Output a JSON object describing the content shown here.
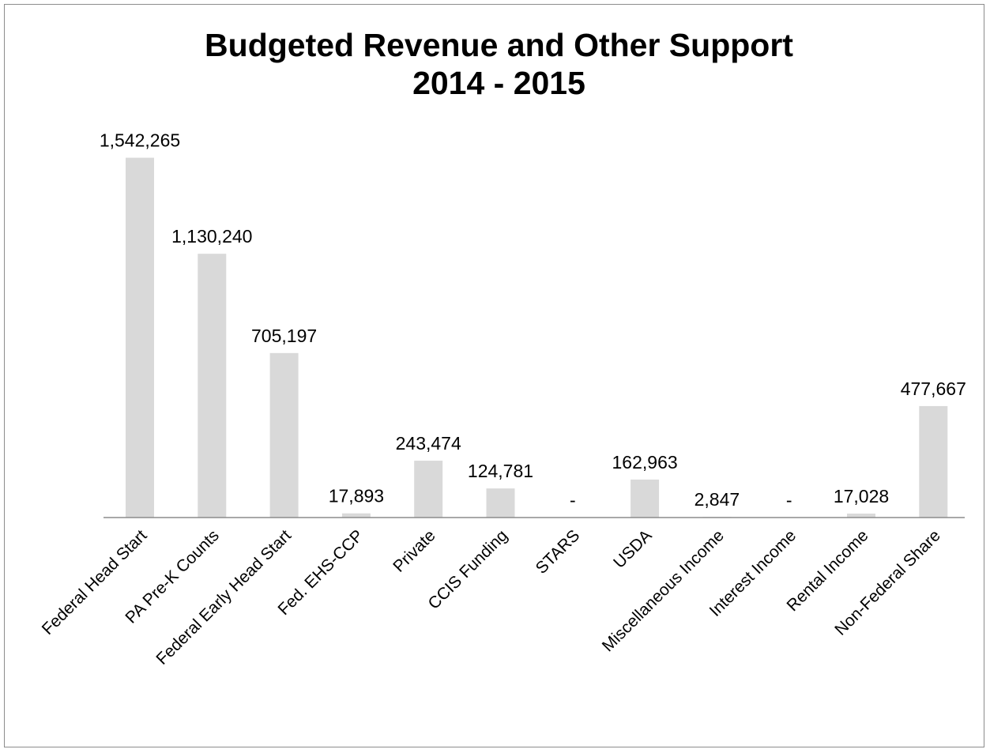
{
  "chart_data": {
    "type": "bar",
    "title": "Budgeted Revenue and Other Support",
    "subtitle": "2014 - 2015",
    "xlabel": "",
    "ylabel": "",
    "ylim": [
      0,
      1700000
    ],
    "grid": false,
    "legend": "none",
    "bar_color": "#d9d9d9",
    "axis_color": "#8c8c8c",
    "categories": [
      "Federal Head Start",
      "PA Pre-K Counts",
      "Federal Early Head Start",
      "Fed. EHS-CCP",
      "Private",
      "CCIS Funding",
      "STARS",
      "USDA",
      "Miscellaneous Income",
      "Interest Income",
      "Rental Income",
      "Non-Federal Share"
    ],
    "values": [
      1542265,
      1130240,
      705197,
      17893,
      243474,
      124781,
      0,
      162963,
      2847,
      0,
      17028,
      477667
    ],
    "data_labels": [
      "1,542,265",
      "1,130,240",
      "705,197",
      "17,893",
      "243,474",
      "124,781",
      "-",
      "162,963",
      "2,847",
      "-",
      "17,028",
      "477,667"
    ]
  }
}
